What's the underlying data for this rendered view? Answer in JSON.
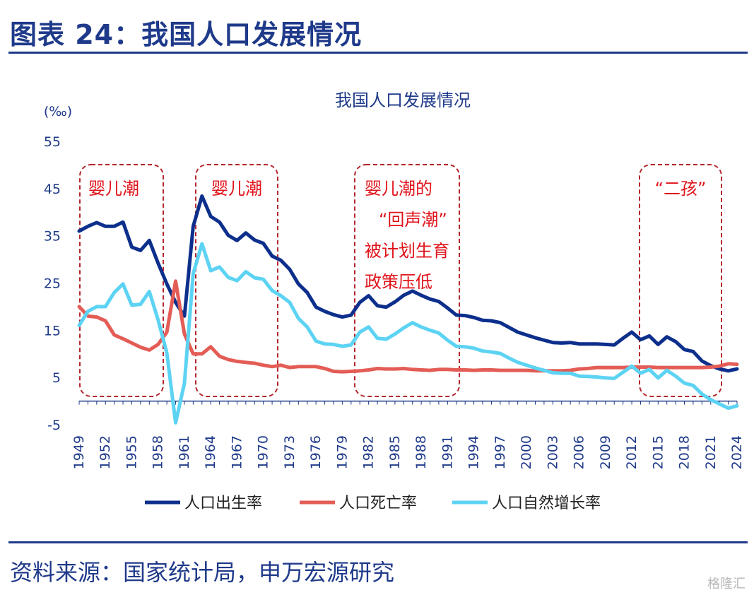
{
  "figure_title": "图表 24：我国人口发展情况",
  "source": "资料来源：国家统计局，申万宏源研究",
  "watermark": "格隆汇",
  "colors": {
    "birth": "#0d2f8c",
    "death": "#e35d56",
    "natural": "#5dd3f3",
    "header": "#1f3a8a",
    "note": "#e0141b"
  },
  "chart_data": {
    "type": "line",
    "title": "我国人口发展情况",
    "ylabel": "(‰)",
    "ylim": [
      -5,
      55
    ],
    "yticks": [
      -5,
      5,
      15,
      25,
      35,
      45,
      55
    ],
    "x_labels": [
      "1949",
      "1952",
      "1955",
      "1958",
      "1961",
      "1964",
      "1967",
      "1970",
      "1973",
      "1976",
      "1979",
      "1982",
      "1985",
      "1988",
      "1991",
      "1994",
      "1997",
      "2000",
      "2003",
      "2006",
      "2009",
      "2012",
      "2015",
      "2018",
      "2021",
      "2024"
    ],
    "x": [
      1949,
      1950,
      1951,
      1952,
      1953,
      1954,
      1955,
      1956,
      1957,
      1958,
      1959,
      1960,
      1961,
      1962,
      1963,
      1964,
      1965,
      1966,
      1967,
      1968,
      1969,
      1970,
      1971,
      1972,
      1973,
      1974,
      1975,
      1976,
      1977,
      1978,
      1979,
      1980,
      1981,
      1982,
      1983,
      1984,
      1985,
      1986,
      1987,
      1988,
      1989,
      1990,
      1991,
      1992,
      1993,
      1994,
      1995,
      1996,
      1997,
      1998,
      1999,
      2000,
      2001,
      2002,
      2003,
      2004,
      2005,
      2006,
      2007,
      2008,
      2009,
      2010,
      2011,
      2012,
      2013,
      2014,
      2015,
      2016,
      2017,
      2018,
      2019,
      2020,
      2021,
      2022,
      2023,
      2024
    ],
    "series": [
      {
        "name": "人口出生率",
        "color": "#0d2f8c",
        "values": [
          36.0,
          37.0,
          37.8,
          37.0,
          37.0,
          37.9,
          32.6,
          31.9,
          34.0,
          29.2,
          24.8,
          20.9,
          18.0,
          37.0,
          43.4,
          39.1,
          37.9,
          35.1,
          34.0,
          35.6,
          34.1,
          33.4,
          30.7,
          29.8,
          27.9,
          24.8,
          23.0,
          19.9,
          19.0,
          18.3,
          17.8,
          18.2,
          20.9,
          22.3,
          20.2,
          19.9,
          21.0,
          22.4,
          23.3,
          22.4,
          21.6,
          21.1,
          19.7,
          18.2,
          18.1,
          17.7,
          17.1,
          17.0,
          16.6,
          15.6,
          14.6,
          14.0,
          13.4,
          12.9,
          12.4,
          12.3,
          12.4,
          12.1,
          12.1,
          12.1,
          12.0,
          11.9,
          13.3,
          14.6,
          13.0,
          13.8,
          12.0,
          13.6,
          12.6,
          10.9,
          10.5,
          8.5,
          7.5,
          6.8,
          6.4,
          6.8
        ]
      },
      {
        "name": "人口死亡率",
        "color": "#e35d56",
        "values": [
          20.0,
          18.0,
          17.8,
          17.0,
          14.0,
          13.2,
          12.3,
          11.4,
          10.8,
          12.0,
          14.6,
          25.4,
          14.2,
          10.0,
          10.0,
          11.5,
          9.5,
          8.8,
          8.4,
          8.2,
          8.0,
          7.6,
          7.3,
          7.6,
          7.1,
          7.3,
          7.3,
          7.3,
          6.9,
          6.3,
          6.2,
          6.3,
          6.4,
          6.6,
          6.9,
          6.8,
          6.8,
          6.9,
          6.7,
          6.6,
          6.5,
          6.7,
          6.7,
          6.6,
          6.6,
          6.5,
          6.6,
          6.6,
          6.5,
          6.5,
          6.5,
          6.5,
          6.4,
          6.4,
          6.4,
          6.4,
          6.5,
          6.8,
          6.9,
          7.1,
          7.1,
          7.1,
          7.1,
          7.2,
          7.2,
          7.2,
          7.1,
          7.1,
          7.1,
          7.1,
          7.1,
          7.1,
          7.2,
          7.4,
          7.9,
          7.8
        ]
      },
      {
        "name": "人口自然增长率",
        "color": "#5dd3f3",
        "values": [
          16.0,
          19.0,
          20.0,
          20.0,
          23.0,
          24.8,
          20.3,
          20.5,
          23.2,
          17.2,
          10.2,
          -4.6,
          3.8,
          27.0,
          33.3,
          27.6,
          28.4,
          26.2,
          25.5,
          27.4,
          26.1,
          25.8,
          23.4,
          22.3,
          20.9,
          17.5,
          15.7,
          12.7,
          12.1,
          12.0,
          11.6,
          11.9,
          14.6,
          15.7,
          13.3,
          13.1,
          14.2,
          15.5,
          16.6,
          15.7,
          15.0,
          14.4,
          12.9,
          11.6,
          11.5,
          11.2,
          10.6,
          10.4,
          10.1,
          9.1,
          8.2,
          7.6,
          7.0,
          6.5,
          6.0,
          5.9,
          5.9,
          5.3,
          5.2,
          5.1,
          4.9,
          4.8,
          6.1,
          7.4,
          5.9,
          6.7,
          4.9,
          6.5,
          5.3,
          3.8,
          3.3,
          1.5,
          0.3,
          -0.6,
          -1.5,
          -1.0
        ]
      }
    ],
    "annotations": [
      {
        "lines": [
          "婴儿潮"
        ]
      },
      {
        "lines": [
          "婴儿潮"
        ]
      },
      {
        "lines": [
          "婴儿潮的",
          "“回声潮”",
          "被计划生育",
          "政策压低"
        ]
      },
      {
        "lines": [
          "“二孩”"
        ]
      }
    ],
    "legend": {
      "placement": "bottom"
    },
    "grid": false
  }
}
